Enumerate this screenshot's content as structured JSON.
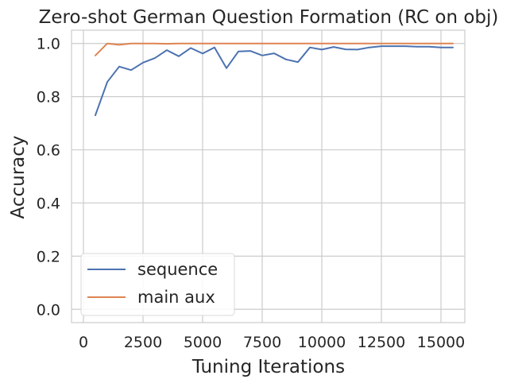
{
  "chart_data": {
    "type": "line",
    "title": "Zero-shot German Question Formation (RC on obj)",
    "xlabel": "Tuning Iterations",
    "ylabel": "Accuracy",
    "xlim": [
      -500,
      16000
    ],
    "ylim": [
      -0.05,
      1.05
    ],
    "xticks": [
      0,
      2500,
      5000,
      7500,
      10000,
      12500,
      15000
    ],
    "yticks": [
      0.0,
      0.2,
      0.4,
      0.6,
      0.8,
      1.0
    ],
    "xtick_labels": [
      "0",
      "2500",
      "5000",
      "7500",
      "10000",
      "12500",
      "15000"
    ],
    "ytick_labels": [
      "0.0",
      "0.2",
      "0.4",
      "0.6",
      "0.8",
      "1.0"
    ],
    "grid": true,
    "legend_position": "lower-left",
    "x": [
      500,
      1000,
      1500,
      2000,
      2500,
      3000,
      3500,
      4000,
      4500,
      5000,
      5500,
      6000,
      6500,
      7000,
      7500,
      8000,
      8500,
      9000,
      9500,
      10000,
      10500,
      11000,
      11500,
      12000,
      12500,
      13000,
      13500,
      14000,
      14500,
      15000,
      15500
    ],
    "series": [
      {
        "name": "sequence",
        "color": "#4c72b0",
        "values": [
          0.73,
          0.855,
          0.913,
          0.9,
          0.928,
          0.945,
          0.975,
          0.952,
          0.983,
          0.962,
          0.985,
          0.907,
          0.97,
          0.972,
          0.955,
          0.963,
          0.94,
          0.93,
          0.985,
          0.977,
          0.987,
          0.978,
          0.977,
          0.985,
          0.99,
          0.99,
          0.99,
          0.988,
          0.988,
          0.985,
          0.985
        ]
      },
      {
        "name": "main aux",
        "color": "#dd8452",
        "values": [
          0.955,
          1.0,
          0.995,
          1.0,
          1.0,
          1.0,
          0.999,
          1.0,
          1.0,
          1.0,
          1.0,
          1.0,
          1.0,
          1.0,
          1.0,
          1.0,
          1.0,
          1.0,
          1.0,
          1.0,
          1.0,
          1.0,
          1.0,
          1.0,
          1.0,
          1.0,
          1.0,
          1.0,
          1.0,
          1.0,
          1.0
        ]
      }
    ]
  }
}
